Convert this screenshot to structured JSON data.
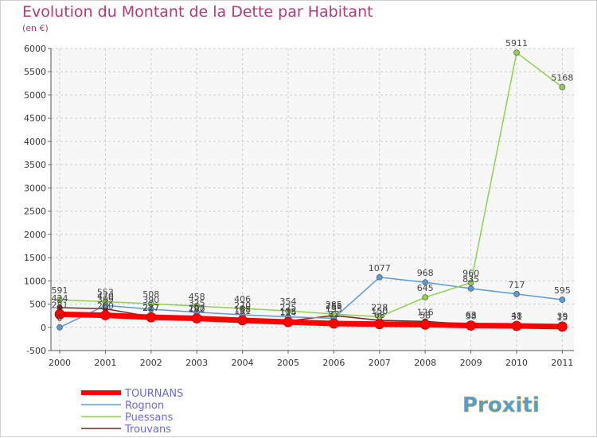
{
  "chart_data": {
    "type": "line",
    "title": "Evolution du Montant de la Dette par Habitant",
    "subtitle": "(en €)",
    "ylim": [
      -500,
      6000
    ],
    "yticks": [
      -500,
      0,
      500,
      1000,
      1500,
      2000,
      2500,
      3000,
      3500,
      4000,
      4500,
      5000,
      5500,
      6000
    ],
    "categories": [
      "2000",
      "2001",
      "2002",
      "2003",
      "2004",
      "2005",
      "2006",
      "2007",
      "2008",
      "2009",
      "2010",
      "2011"
    ],
    "grid": true,
    "series": [
      {
        "name": "TOURNANS",
        "color": "#ff0000",
        "values": [
          281,
          260,
          217,
          192,
          151,
          114,
          82,
          68,
          58,
          38,
          31,
          15
        ]
      },
      {
        "name": "Rognon",
        "color": "#5b9bd5",
        "values": [
          0,
          470,
          390,
          325,
          270,
          225,
          195,
          1077,
          968,
          835,
          717,
          595
        ]
      },
      {
        "name": "Puessans",
        "color": "#8fd14f",
        "values": [
          591,
          553,
          508,
          458,
          406,
          354,
          285,
          228,
          645,
          960,
          5911,
          5168
        ]
      },
      {
        "name": "Trouvans",
        "color": "#7a2020",
        "values": [
          424,
          399,
          227,
          208,
          188,
          135,
          255,
          150,
          126,
          63,
          48,
          39
        ]
      }
    ],
    "data_labels": [
      {
        "series": 0,
        "values": [
          "281",
          "260",
          "217",
          "192",
          "151",
          "114",
          "82",
          "68",
          "58",
          "38",
          "31",
          "15"
        ]
      },
      {
        "series": 1,
        "values": [
          "0",
          "470",
          "390",
          "325",
          "270",
          "225",
          "195",
          "1077",
          "968",
          "835",
          "717",
          "595"
        ]
      },
      {
        "series": 2,
        "values": [
          "591",
          "553",
          "508",
          "458",
          "406",
          "354",
          "285",
          "228",
          "645",
          "960",
          "5911",
          "5168"
        ]
      },
      {
        "series": 3,
        "values": [
          "424",
          "399",
          "227",
          "208",
          "188",
          "135",
          "255",
          "150",
          "126",
          "63",
          "48",
          "39"
        ]
      }
    ]
  },
  "legend": {
    "items": [
      {
        "label": "TOURNANS"
      },
      {
        "label": "Rognon"
      },
      {
        "label": "Puessans"
      },
      {
        "label": "Trouvans"
      }
    ]
  },
  "logo": {
    "text": "Proxiti"
  }
}
